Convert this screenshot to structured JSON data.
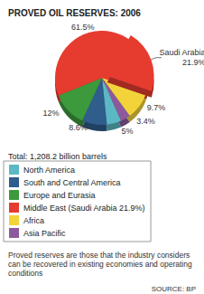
{
  "chart_data": {
    "type": "pie",
    "title": "PROVED OIL RESERVES: 2006",
    "subtitle": "Total: 1,208.2 billion barrels",
    "categories": [
      "North America",
      "South and Central America",
      "Europe and Eurasia",
      "Middle East (Saudi Arabia 21.9%)",
      "Africa",
      "Asia Pacific"
    ],
    "values": [
      5,
      8.6,
      12,
      61.5,
      9.7,
      3.4
    ],
    "value_labels": [
      "5%",
      "8.6%",
      "12%",
      "61.5%",
      "9.7%",
      "3.4%"
    ],
    "colors": [
      "#5cb8c4",
      "#2f5d8c",
      "#3c9a3c",
      "#e63c2f",
      "#f2d43a",
      "#8c5a9c"
    ],
    "data_labels": true,
    "legend": "bottom",
    "highlight": {
      "name": "Saudi Arabia",
      "value": 21.9,
      "value_label": "21.9%",
      "parent": "Middle East (Saudi Arabia 21.9%)",
      "color": "#e63c2f"
    },
    "notes": [
      "Proved reserves are those that the industry considers can be recovered in existing economies and operating conditions"
    ],
    "source": "SOURCE: BP"
  }
}
